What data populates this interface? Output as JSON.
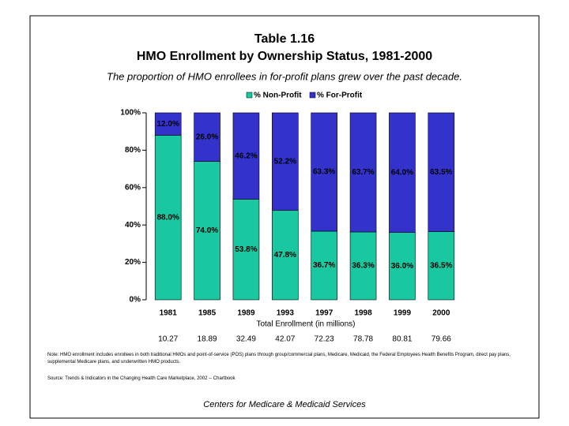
{
  "chart_data": {
    "type": "stacked_bar",
    "title": "Table 1.16",
    "subtitle": "HMO Enrollment by Ownership Status, 1981-2000",
    "caption": "The proportion of HMO enrollees in for-profit plans grew over the past decade.",
    "categories": [
      "1981",
      "1985",
      "1989",
      "1993",
      "1997",
      "1998",
      "1999",
      "2000"
    ],
    "series": [
      {
        "name": "% Non-Profit",
        "color": "#19c7a0",
        "values": [
          88.0,
          74.0,
          53.8,
          47.8,
          36.7,
          36.3,
          36.0,
          36.5
        ],
        "value_labels": [
          "88.0%",
          "74.0%",
          "53.8%",
          "47.8%",
          "36.7%",
          "36.3%",
          "36.0%",
          "36.5%"
        ]
      },
      {
        "name": "% For-Profit",
        "color": "#3333cc",
        "values": [
          12.0,
          26.0,
          46.2,
          52.2,
          63.3,
          63.7,
          64.0,
          63.5
        ],
        "value_labels": [
          "12.0%",
          "26.0%",
          "46.2%",
          "52.2%",
          "63.3%",
          "63.7%",
          "64.0%",
          "63.5%"
        ]
      }
    ],
    "ylim": [
      0,
      100
    ],
    "yticks": [
      {
        "value": 0,
        "label": "0%"
      },
      {
        "value": 20,
        "label": "20%"
      },
      {
        "value": 40,
        "label": "40%"
      },
      {
        "value": 60,
        "label": "60%"
      },
      {
        "value": 80,
        "label": "80%"
      },
      {
        "value": 100,
        "label": "100%"
      }
    ],
    "legend": "top",
    "enrollment": {
      "label": "Total Enrollment (in millions)",
      "values": [
        10.27,
        18.89,
        32.49,
        42.07,
        72.23,
        78.78,
        80.81,
        79.66
      ]
    },
    "note": "Note: HMO enrollment includes enrollees in both traditional HMOs and point-of-service (POS) plans through group/commercial plans, Medicare, Medicaid, the Federal Employees Health Benefits Program, direct pay plans, supplemental Medicare plans, and underwritten HMO products.",
    "source": "Source: Trends & Indicators in the Changing Health Care Marketplace, 2002 -- Chartbook",
    "footer": "Centers for Medicare & Medicaid Services"
  }
}
